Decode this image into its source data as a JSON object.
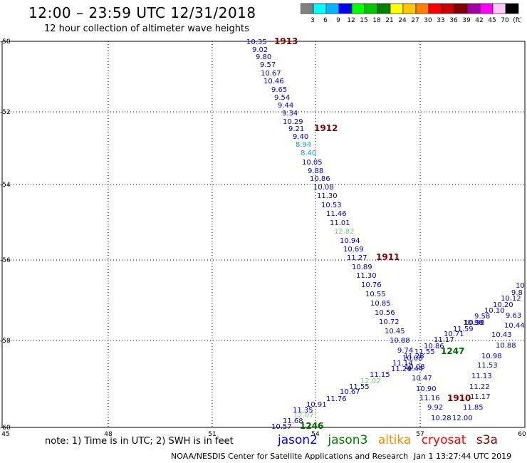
{
  "header": {
    "title": "12:00 – 23:59 UTC 12/31/2018",
    "subtitle": "12 hour collection of altimeter wave heights"
  },
  "color_scale": {
    "colors": [
      "#808080",
      "#00ffff",
      "#00b4ff",
      "#0000ff",
      "#00ff00",
      "#00c800",
      "#008000",
      "#ffff00",
      "#ffc800",
      "#ff8000",
      "#ff0000",
      "#c80000",
      "#800000",
      "#a000a0",
      "#ff00ff",
      "#ffc8ff",
      "#000000"
    ],
    "labels": [
      "3",
      "6",
      "9",
      "12",
      "15",
      "18",
      "21",
      "24",
      "27",
      "30",
      "33",
      "36",
      "39",
      "42",
      "45",
      "70",
      "(ft)"
    ]
  },
  "axes": {
    "lat_labels": [
      "-50",
      "-52",
      "-54",
      "-56",
      "-58",
      "-60"
    ],
    "lon_labels": [
      "45",
      "48",
      "51",
      "54",
      "57",
      "60"
    ]
  },
  "passes": {
    "labels": [
      {
        "text": "1913",
        "color": "#800000"
      },
      {
        "text": "1912",
        "color": "#800000"
      },
      {
        "text": "1911",
        "color": "#800000"
      },
      {
        "text": "1910",
        "color": "#800000"
      },
      {
        "text": "1247",
        "color": "#006400"
      },
      {
        "text": "1246",
        "color": "#006400"
      }
    ],
    "track_a": [
      "10.35",
      "9.02",
      "9.80",
      "9.57",
      "10.67",
      "10.46",
      "9.65",
      "9.54",
      "9.44",
      "9.34",
      "10.29",
      "9.21",
      "9.40",
      "8.94",
      "8.40",
      "10.05",
      "9.88",
      "10.86",
      "10.08",
      "11.30",
      "10.53",
      "11.46",
      "11.01",
      "12.82",
      "10.94",
      "10.69",
      "11.27",
      "10.89",
      "11.30",
      "10.76",
      "10.55",
      "10.85",
      "10.56",
      "10.72",
      "10.45",
      "10.88",
      "9.74",
      "10.08",
      "10.08",
      "9.44",
      "10.47",
      "10.90",
      "11.16",
      "9.92",
      "10.28"
    ],
    "track_a_colors": {
      "8.94": "#00a8e0",
      "8.40": "#00a8e0",
      "12.82": "#66dd66"
    },
    "track_b": [
      "10.57",
      "11.68",
      "12.07",
      "11.35",
      "10.91",
      "11.76",
      "10.67",
      "11.55",
      "12.02",
      "11.15",
      "11.24",
      "11.14",
      "11.28",
      "11.55",
      "10.86",
      "11.17",
      "10.71",
      "11.59",
      "10.98",
      "9.58",
      "10.10",
      "10.20",
      "10.12",
      "9.8",
      "10"
    ],
    "track_b_colors": {
      "12.07": "#66dd66",
      "12.02": "#66dd66"
    },
    "track_c": [
      "10.98",
      "9.63",
      "10.44",
      "10.43",
      "10.88",
      "10.98",
      "11.53",
      "11.13",
      "11.22",
      "11.17",
      "11.85",
      "12.00"
    ]
  },
  "note": "note:  1) Time is in UTC;  2) SWH is in feet",
  "satellites": [
    {
      "name": "jason2",
      "color": "#0000ff"
    },
    {
      "name": "jason3",
      "color": "#008000"
    },
    {
      "name": "altika",
      "color": "#ff8c00"
    },
    {
      "name": "cryosat",
      "color": "#ff0000"
    },
    {
      "name": "s3a",
      "color": "#800000"
    }
  ],
  "footer": {
    "source": "NOAA/NESDIS Center for Satellite Applications and Research",
    "timestamp": "Jan  1 13:27:44 UTC 2019"
  }
}
